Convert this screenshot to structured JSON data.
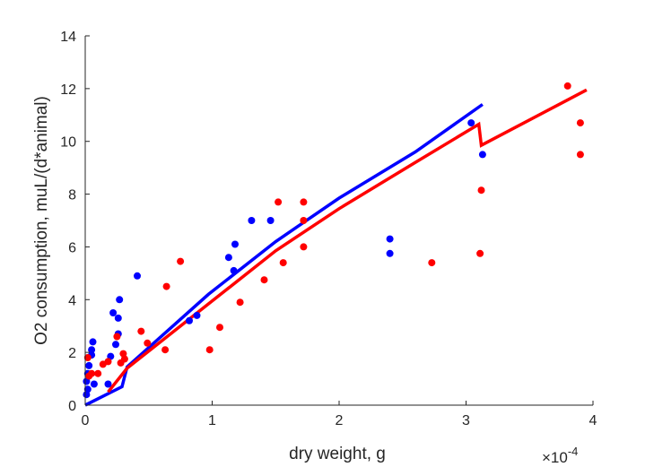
{
  "chart_data": {
    "type": "scatter",
    "title": "",
    "xlabel": "dry weight, g",
    "ylabel": "O2 consumption, muL/(d*animal)",
    "x_multiplier_base": "×10",
    "x_multiplier_exp": "-4",
    "xlim": [
      0,
      4
    ],
    "ylim": [
      0,
      14
    ],
    "x_ticks": [
      "0",
      "1",
      "2",
      "3",
      "4"
    ],
    "y_ticks": [
      "0",
      "2",
      "4",
      "6",
      "8",
      "10",
      "12",
      "14"
    ],
    "grid": false,
    "legend": "none",
    "series": [
      {
        "kind": "points",
        "color": "#0000ff",
        "points": [
          [
            0.01,
            0.4
          ],
          [
            0.02,
            0.6
          ],
          [
            0.01,
            0.9
          ],
          [
            0.02,
            1.2
          ],
          [
            0.03,
            1.5
          ],
          [
            0.05,
            1.9
          ],
          [
            0.05,
            2.1
          ],
          [
            0.06,
            2.4
          ],
          [
            0.07,
            0.8
          ],
          [
            0.18,
            0.8
          ],
          [
            0.2,
            1.85
          ],
          [
            0.22,
            3.5
          ],
          [
            0.24,
            2.3
          ],
          [
            0.26,
            2.7
          ],
          [
            0.26,
            3.3
          ],
          [
            0.27,
            4.0
          ],
          [
            0.41,
            4.9
          ],
          [
            0.82,
            3.2
          ],
          [
            0.88,
            3.4
          ],
          [
            1.13,
            5.6
          ],
          [
            1.17,
            5.1
          ],
          [
            1.18,
            6.1
          ],
          [
            1.31,
            7.0
          ],
          [
            1.46,
            7.0
          ],
          [
            2.4,
            6.3
          ],
          [
            2.4,
            5.75
          ],
          [
            3.04,
            10.7
          ],
          [
            3.13,
            9.5
          ]
        ]
      },
      {
        "kind": "points",
        "color": "#ff0000",
        "points": [
          [
            0.02,
            1.8
          ],
          [
            0.03,
            1.1
          ],
          [
            0.05,
            1.2
          ],
          [
            0.1,
            1.2
          ],
          [
            0.14,
            1.55
          ],
          [
            0.18,
            1.65
          ],
          [
            0.25,
            2.6
          ],
          [
            0.28,
            1.6
          ],
          [
            0.3,
            1.95
          ],
          [
            0.31,
            1.75
          ],
          [
            0.44,
            2.8
          ],
          [
            0.49,
            2.35
          ],
          [
            0.63,
            2.1
          ],
          [
            0.64,
            4.5
          ],
          [
            0.75,
            5.45
          ],
          [
            0.98,
            2.1
          ],
          [
            1.06,
            2.95
          ],
          [
            1.22,
            3.9
          ],
          [
            1.41,
            4.75
          ],
          [
            1.52,
            7.7
          ],
          [
            1.56,
            5.4
          ],
          [
            1.72,
            7.0
          ],
          [
            1.72,
            7.7
          ],
          [
            1.72,
            6.0
          ],
          [
            2.73,
            5.4
          ],
          [
            3.11,
            5.75
          ],
          [
            3.12,
            8.15
          ],
          [
            3.8,
            12.1
          ],
          [
            3.9,
            9.5
          ],
          [
            3.9,
            10.7
          ]
        ]
      },
      {
        "kind": "line",
        "color": "#0000ff",
        "points": [
          [
            0.0,
            0.0
          ],
          [
            0.29,
            0.7
          ],
          [
            0.33,
            1.45
          ],
          [
            0.97,
            4.2
          ],
          [
            1.5,
            6.2
          ],
          [
            2.0,
            7.85
          ],
          [
            2.6,
            9.6
          ],
          [
            3.13,
            11.4
          ]
        ]
      },
      {
        "kind": "line",
        "color": "#ff0000",
        "points": [
          [
            0.18,
            0.5
          ],
          [
            0.33,
            1.4
          ],
          [
            1.0,
            3.95
          ],
          [
            1.5,
            5.85
          ],
          [
            2.0,
            7.45
          ],
          [
            2.6,
            9.2
          ],
          [
            3.1,
            10.65
          ],
          [
            3.12,
            9.85
          ],
          [
            3.95,
            11.95
          ]
        ]
      }
    ]
  }
}
